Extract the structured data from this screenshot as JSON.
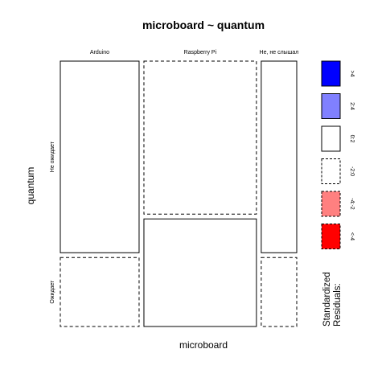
{
  "chart_data": {
    "type": "mosaic",
    "title": "microboard ~ quantum",
    "xlabel": "microboard",
    "ylabel": "quantum",
    "columns": [
      "Arduino",
      "Raspberry Pi",
      "Не, не слышал"
    ],
    "rows": [
      "Не ожидает",
      "Ожидает"
    ],
    "column_proportions": [
      0.3474,
      0.4961,
      0.1565
    ],
    "cells": [
      {
        "column": "Arduino",
        "row": "Не ожидает",
        "proportion": 0.7355,
        "residual_band": "0:2"
      },
      {
        "column": "Arduino",
        "row": "Ожидает",
        "proportion": 0.2645,
        "residual_band": "-2:0"
      },
      {
        "column": "Raspberry Pi",
        "row": "Не ожидает",
        "proportion": 0.5871,
        "residual_band": "-2:0"
      },
      {
        "column": "Raspberry Pi",
        "row": "Ожидает",
        "proportion": 0.4129,
        "residual_band": "0:2"
      },
      {
        "column": "Не, не слышал",
        "row": "Не ожидает",
        "proportion": 0.7355,
        "residual_band": "0:2"
      },
      {
        "column": "Не, не слышал",
        "row": "Ожидает",
        "proportion": 0.2645,
        "residual_band": "-2:0"
      }
    ],
    "legend": {
      "title": "Standardized\nResiduals:",
      "position": "right",
      "items": [
        {
          "label": ">4",
          "fill": "#0000ff",
          "dashed": false
        },
        {
          "label": "2:4",
          "fill": "#8080ff",
          "dashed": false
        },
        {
          "label": "0:2",
          "fill": "#ffffff",
          "dashed": false
        },
        {
          "label": "-2:0",
          "fill": "#ffffff",
          "dashed": true
        },
        {
          "label": "-4:-2",
          "fill": "#ff8080",
          "dashed": true
        },
        {
          "label": "<-4",
          "fill": "#ff0000",
          "dashed": true
        }
      ]
    }
  }
}
